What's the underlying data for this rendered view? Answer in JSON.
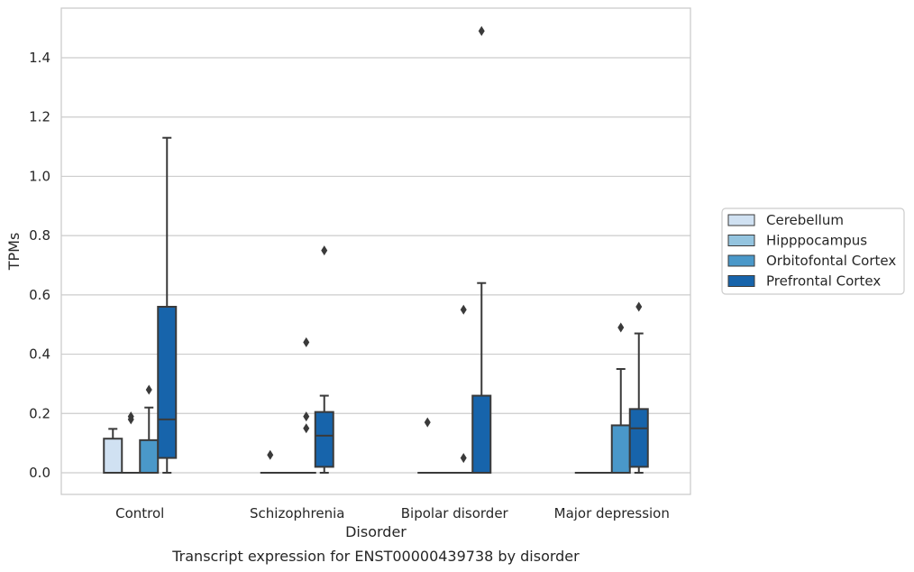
{
  "chart_data": {
    "type": "box",
    "title": "",
    "caption": "Transcript expression for ENST00000439738 by disorder",
    "xlabel": "Disorder",
    "ylabel": "TPMs",
    "ylim": [
      -0.07,
      1.57
    ],
    "yticks": [
      0.0,
      0.2,
      0.4,
      0.6,
      0.8,
      1.0,
      1.2,
      1.4
    ],
    "ytick_labels": [
      "0.0",
      "0.2",
      "0.4",
      "0.6",
      "0.8",
      "1.0",
      "1.2",
      "1.4"
    ],
    "categories": [
      "Control",
      "Schizophrenia",
      "Bipolar disorder",
      "Major depression"
    ],
    "grid": "horizontal",
    "legend_position": "right",
    "series": [
      {
        "name": "Cerebellum",
        "color": "#d0e1f2",
        "boxes": [
          {
            "q1": 0.0,
            "median": 0.0,
            "q3": 0.115,
            "whisker_low": 0.0,
            "whisker_high": 0.148,
            "outliers": []
          },
          {
            "q1": 0.0,
            "median": 0.0,
            "q3": 0.0,
            "whisker_low": 0.0,
            "whisker_high": 0.0,
            "outliers": [
              0.06
            ]
          },
          {
            "q1": 0.0,
            "median": 0.0,
            "q3": 0.0,
            "whisker_low": 0.0,
            "whisker_high": 0.0,
            "outliers": [
              0.17
            ]
          },
          {
            "q1": 0.0,
            "median": 0.0,
            "q3": 0.0,
            "whisker_low": 0.0,
            "whisker_high": 0.0,
            "outliers": []
          }
        ]
      },
      {
        "name": "Hipppocampus",
        "color": "#94c4df",
        "boxes": [
          {
            "q1": 0.0,
            "median": 0.0,
            "q3": 0.0,
            "whisker_low": 0.0,
            "whisker_high": 0.0,
            "outliers": [
              0.18,
              0.19
            ]
          },
          {
            "q1": 0.0,
            "median": 0.0,
            "q3": 0.0,
            "whisker_low": 0.0,
            "whisker_high": 0.0,
            "outliers": []
          },
          {
            "q1": 0.0,
            "median": 0.0,
            "q3": 0.0,
            "whisker_low": 0.0,
            "whisker_high": 0.0,
            "outliers": []
          },
          {
            "q1": 0.0,
            "median": 0.0,
            "q3": 0.0,
            "whisker_low": 0.0,
            "whisker_high": 0.0,
            "outliers": []
          }
        ]
      },
      {
        "name": "Orbitofontal Cortex",
        "color": "#4a98c9",
        "boxes": [
          {
            "q1": 0.0,
            "median": 0.0,
            "q3": 0.11,
            "whisker_low": 0.0,
            "whisker_high": 0.22,
            "outliers": [
              0.28
            ]
          },
          {
            "q1": 0.0,
            "median": 0.0,
            "q3": 0.0,
            "whisker_low": 0.0,
            "whisker_high": 0.0,
            "outliers": [
              0.15,
              0.19,
              0.44
            ]
          },
          {
            "q1": 0.0,
            "median": 0.0,
            "q3": 0.0,
            "whisker_low": 0.0,
            "whisker_high": 0.0,
            "outliers": [
              0.05,
              0.55
            ]
          },
          {
            "q1": 0.0,
            "median": 0.0,
            "q3": 0.16,
            "whisker_low": 0.0,
            "whisker_high": 0.35,
            "outliers": [
              0.49
            ]
          }
        ]
      },
      {
        "name": "Prefrontal Cortex",
        "color": "#1764ab",
        "boxes": [
          {
            "q1": 0.05,
            "median": 0.18,
            "q3": 0.56,
            "whisker_low": 0.0,
            "whisker_high": 1.13,
            "outliers": []
          },
          {
            "q1": 0.02,
            "median": 0.125,
            "q3": 0.205,
            "whisker_low": 0.0,
            "whisker_high": 0.26,
            "outliers": [
              0.75
            ]
          },
          {
            "q1": 0.0,
            "median": 0.0,
            "q3": 0.26,
            "whisker_low": 0.0,
            "whisker_high": 0.64,
            "outliers": [
              1.49
            ]
          },
          {
            "q1": 0.02,
            "median": 0.15,
            "q3": 0.215,
            "whisker_low": 0.0,
            "whisker_high": 0.47,
            "outliers": [
              0.56
            ]
          }
        ]
      }
    ]
  },
  "style": {
    "grid_color": "#cccccc",
    "frame_color": "#cccccc",
    "box_edge_color": "#3a3a3a",
    "text_color": "#262626"
  }
}
